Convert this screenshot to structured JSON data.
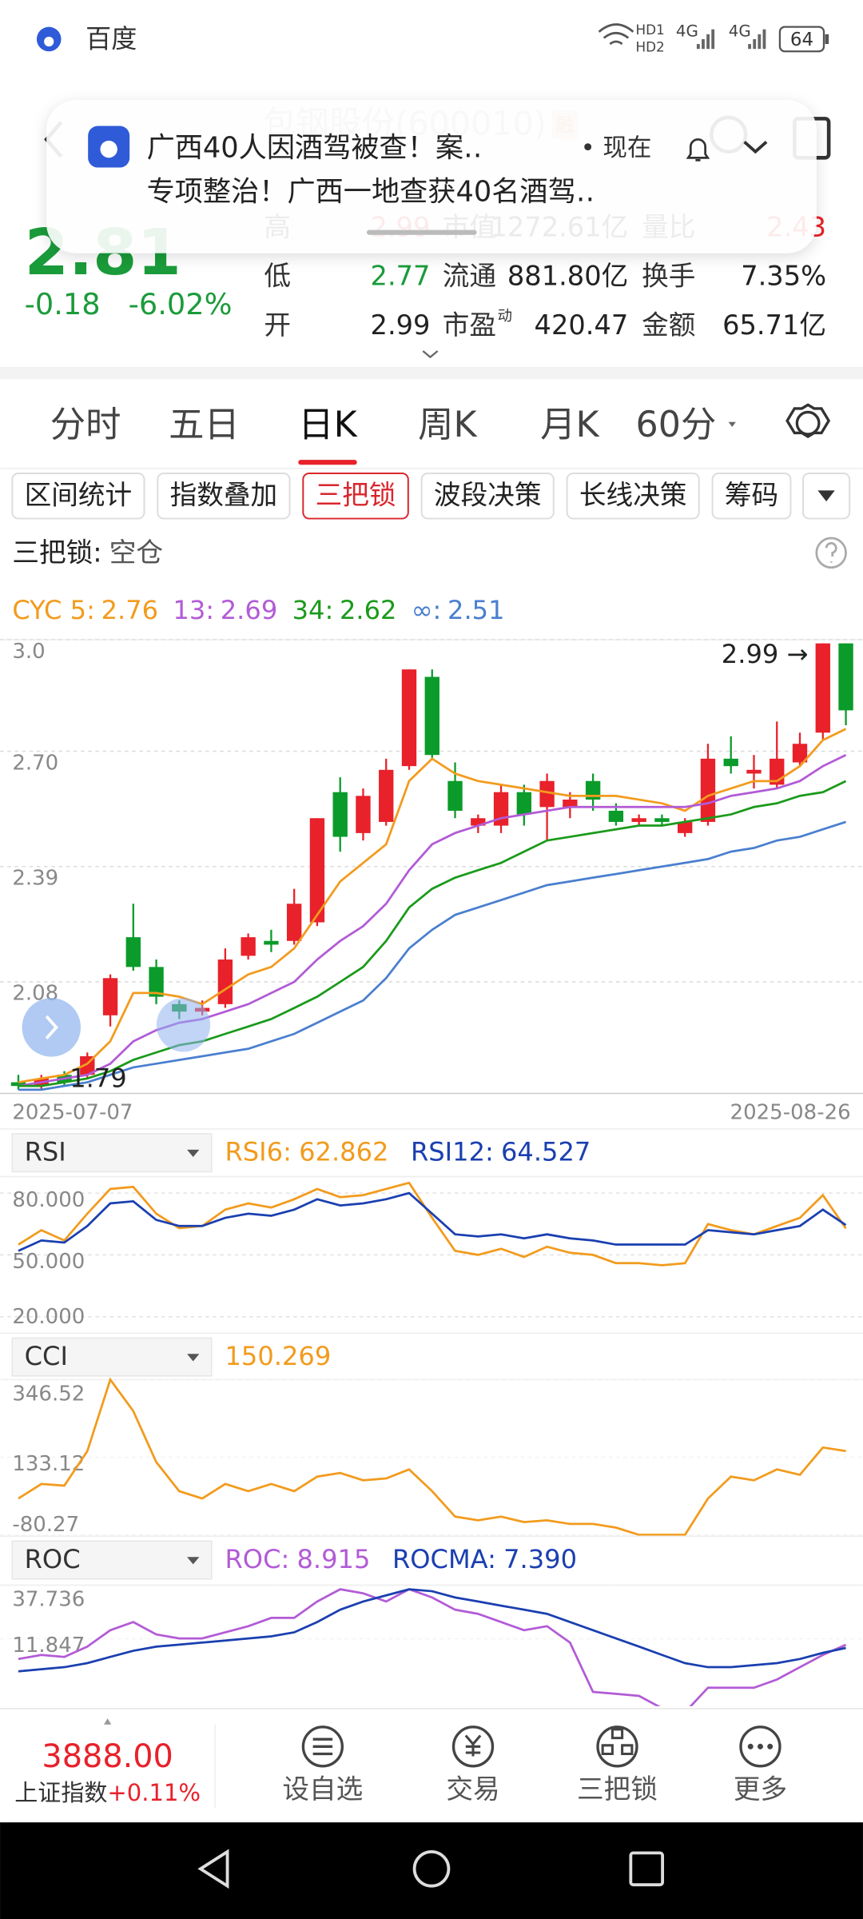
{
  "status_bar": {
    "app": "百度",
    "indicators": [
      "HD1",
      "HD2",
      "4G",
      "4G"
    ],
    "battery": "64"
  },
  "notification": {
    "line1": "广西40人因酒驾被查！案‥",
    "time": "• 现在",
    "line2": "专项整治！广西一地查获40名酒驾‥"
  },
  "stock": {
    "name": "包钢股份(600010)",
    "badge": "融",
    "price": "2.81",
    "change": "-0.18",
    "change_pct": "-6.02%",
    "stats": [
      [
        {
          "label": "高",
          "value": "2.99"
        },
        {
          "label": "市值",
          "value": "1272.61亿"
        },
        {
          "label": "量比",
          "value": "2.43"
        }
      ],
      [
        {
          "label": "低",
          "value": "2.77"
        },
        {
          "label": "流通",
          "value": "881.80亿"
        },
        {
          "label": "换手",
          "value": "7.35%"
        }
      ],
      [
        {
          "label": "开",
          "value": "2.99"
        },
        {
          "label": "市盈",
          "sup": "动",
          "value": "420.47"
        },
        {
          "label": "金额",
          "value": "65.71亿"
        }
      ]
    ]
  },
  "period_tabs": [
    "分时",
    "五日",
    "日K",
    "周K",
    "月K",
    "60分"
  ],
  "active_tab": 2,
  "indicator_chips": [
    "区间统计",
    "指数叠加",
    "三把锁",
    "波段决策",
    "长线决策",
    "筹码"
  ],
  "active_chip": 2,
  "signal": {
    "label": "三把锁:",
    "value": "空仓"
  },
  "chart_data": [
    {
      "type": "candlestick",
      "up_color": "#e8212a",
      "down_color": "#0a9b2a",
      "categories": [
        "2025-07-07",
        null,
        null,
        null,
        null,
        null,
        null,
        null,
        null,
        null,
        null,
        null,
        null,
        null,
        null,
        null,
        null,
        null,
        null,
        null,
        null,
        null,
        null,
        null,
        null,
        null,
        null,
        null,
        null,
        null,
        null,
        null,
        null,
        null,
        null,
        null,
        "2025-08-26"
      ],
      "open": [
        1.81,
        1.8,
        1.83,
        1.83,
        1.99,
        2.2,
        2.12,
        2.02,
        2.0,
        2.02,
        2.15,
        2.19,
        2.19,
        2.24,
        2.59,
        2.48,
        2.51,
        2.66,
        2.9,
        2.62,
        2.5,
        2.5,
        2.59,
        2.55,
        2.55,
        2.62,
        2.54,
        2.51,
        2.52,
        2.48,
        2.51,
        2.68,
        2.64,
        2.61,
        2.67,
        2.75,
        2.99
      ],
      "high": [
        1.83,
        1.83,
        1.84,
        1.89,
        2.1,
        2.29,
        2.14,
        2.03,
        2.03,
        2.17,
        2.21,
        2.22,
        2.33,
        2.52,
        2.63,
        2.6,
        2.68,
        2.92,
        2.92,
        2.67,
        2.53,
        2.61,
        2.61,
        2.64,
        2.59,
        2.64,
        2.56,
        2.53,
        2.53,
        2.52,
        2.72,
        2.74,
        2.69,
        2.78,
        2.75,
        2.99,
        2.99
      ],
      "low": [
        1.79,
        1.79,
        1.8,
        1.82,
        1.96,
        2.11,
        2.02,
        1.98,
        1.99,
        2.01,
        2.14,
        2.16,
        2.18,
        2.23,
        2.43,
        2.46,
        2.5,
        2.65,
        2.68,
        2.52,
        2.48,
        2.48,
        2.5,
        2.46,
        2.52,
        2.54,
        2.5,
        2.5,
        2.5,
        2.47,
        2.5,
        2.64,
        2.6,
        2.6,
        2.66,
        2.73,
        2.77
      ],
      "close": [
        1.8,
        1.82,
        1.81,
        1.88,
        2.09,
        2.12,
        2.04,
        2.0,
        2.01,
        2.14,
        2.2,
        2.18,
        2.29,
        2.52,
        2.47,
        2.58,
        2.65,
        2.92,
        2.69,
        2.54,
        2.52,
        2.59,
        2.53,
        2.62,
        2.57,
        2.57,
        2.51,
        2.52,
        2.51,
        2.51,
        2.68,
        2.66,
        2.65,
        2.68,
        2.72,
        2.99,
        2.81
      ],
      "series": [
        {
          "name": "CYC 5:",
          "value_label": "2.76",
          "color": "#f29b1d",
          "values": [
            1.81,
            1.82,
            1.83,
            1.86,
            1.92,
            2.05,
            2.05,
            2.04,
            2.02,
            2.06,
            2.1,
            2.12,
            2.17,
            2.26,
            2.35,
            2.4,
            2.45,
            2.62,
            2.68,
            2.64,
            2.62,
            2.61,
            2.6,
            2.59,
            2.58,
            2.58,
            2.58,
            2.57,
            2.56,
            2.54,
            2.58,
            2.6,
            2.62,
            2.62,
            2.66,
            2.73,
            2.76
          ]
        },
        {
          "name": "13:",
          "value_label": "2.69",
          "color": "#b25bd6",
          "values": [
            1.8,
            1.81,
            1.82,
            1.83,
            1.86,
            1.92,
            1.95,
            1.97,
            1.98,
            2.0,
            2.02,
            2.05,
            2.08,
            2.14,
            2.19,
            2.23,
            2.29,
            2.38,
            2.45,
            2.48,
            2.5,
            2.52,
            2.53,
            2.54,
            2.55,
            2.55,
            2.55,
            2.55,
            2.55,
            2.55,
            2.56,
            2.58,
            2.59,
            2.6,
            2.62,
            2.66,
            2.69
          ]
        },
        {
          "name": "34:",
          "value_label": "2.62",
          "color": "#1b9a1b",
          "values": [
            1.8,
            1.8,
            1.81,
            1.82,
            1.84,
            1.87,
            1.89,
            1.91,
            1.92,
            1.94,
            1.96,
            1.98,
            2.01,
            2.04,
            2.08,
            2.12,
            2.19,
            2.28,
            2.33,
            2.36,
            2.38,
            2.4,
            2.43,
            2.46,
            2.47,
            2.48,
            2.49,
            2.5,
            2.5,
            2.51,
            2.52,
            2.53,
            2.55,
            2.56,
            2.58,
            2.59,
            2.62
          ]
        },
        {
          "name": "∞:",
          "value_label": "2.51",
          "color": "#4a7fcf",
          "values": [
            1.79,
            1.79,
            1.8,
            1.81,
            1.83,
            1.85,
            1.86,
            1.87,
            1.88,
            1.89,
            1.9,
            1.92,
            1.94,
            1.97,
            2.0,
            2.03,
            2.09,
            2.17,
            2.22,
            2.26,
            2.28,
            2.3,
            2.32,
            2.34,
            2.35,
            2.36,
            2.37,
            2.38,
            2.39,
            2.4,
            2.41,
            2.43,
            2.44,
            2.46,
            2.47,
            2.49,
            2.51
          ]
        }
      ],
      "high_label": "2.99 →",
      "low_label": "1.79",
      "ylim": [
        1.78,
        3.0
      ],
      "yticks": [
        {
          "value": 3.0,
          "label": "3.0"
        },
        {
          "value": 2.7,
          "label": "2.70"
        },
        2.39,
        2.08
      ],
      "grid": true
    },
    {
      "type": "line",
      "selector": "RSI",
      "series": [
        {
          "name": "RSI6:",
          "value_label": "62.862",
          "color": "#f29b1d",
          "values": [
            55,
            62,
            57,
            70,
            82,
            83,
            70,
            63,
            64,
            72,
            75,
            73,
            77,
            82,
            78,
            79,
            82,
            85,
            68,
            52,
            50,
            53,
            49,
            54,
            51,
            50,
            46,
            46,
            45,
            46,
            65,
            62,
            60,
            64,
            68,
            79,
            62.862
          ]
        },
        {
          "name": "RSI12:",
          "value_label": "64.527",
          "color": "#1a3fb0",
          "values": [
            52,
            57,
            56,
            64,
            75,
            76,
            67,
            64,
            64,
            68,
            70,
            69,
            72,
            77,
            74,
            75,
            77,
            80,
            70,
            60,
            59,
            60,
            58,
            60,
            58,
            57,
            55,
            55,
            55,
            55,
            62,
            61,
            60,
            62,
            64,
            72,
            64.527
          ]
        }
      ],
      "ylim": [
        15,
        88
      ],
      "yticks": [
        {
          "value": 80,
          "label": "80.000"
        },
        {
          "value": 50,
          "label": "50.000"
        },
        {
          "value": 20,
          "label": "20.000"
        }
      ],
      "grid": true
    },
    {
      "type": "line",
      "selector": "CCI",
      "series": [
        {
          "value_label": "150.269",
          "color": "#f29b1d",
          "values": [
            20,
            60,
            55,
            150,
            346.52,
            260,
            120,
            40,
            20,
            60,
            40,
            60,
            40,
            80,
            90,
            70,
            75,
            100,
            40,
            -30,
            -40,
            -30,
            -45,
            -40,
            -50,
            -50,
            -60,
            -80,
            -80,
            -80,
            20,
            80,
            70,
            100,
            85,
            160,
            150.269
          ]
        }
      ],
      "ylim": [
        -80.27,
        346.52
      ],
      "yticks": [
        346.52,
        133.12,
        -80.27
      ],
      "grid": false
    },
    {
      "type": "line",
      "selector": "ROC",
      "series": [
        {
          "name": "ROC:",
          "value_label": "8.915",
          "color": "#b25bd6",
          "values": [
            2,
            4,
            3,
            8,
            16,
            20,
            14,
            12,
            12,
            15,
            18,
            22,
            22,
            30,
            36,
            34,
            30,
            36,
            32,
            26,
            24,
            20,
            16,
            18,
            10,
            -14,
            -15,
            -16,
            -22,
            -24,
            -12,
            -12,
            -12,
            -8,
            -2,
            4,
            8.915
          ]
        },
        {
          "name": "ROCMA:",
          "value_label": "7.390",
          "color": "#1a3fb0",
          "values": [
            -4,
            -3,
            -2,
            0,
            3,
            6,
            8,
            9,
            10,
            11,
            12,
            13,
            15,
            20,
            26,
            30,
            33,
            36,
            35,
            32,
            30,
            28,
            26,
            24,
            20,
            16,
            12,
            8,
            4,
            0,
            -2,
            -2,
            -1,
            0,
            2,
            5,
            7.39
          ]
        }
      ],
      "ylim": [
        -21,
        38
      ],
      "yticks": [
        37.736,
        11.847
      ],
      "grid": false
    }
  ],
  "bottom_bar": {
    "index_value": "3888.00",
    "index_name": "上证指数",
    "index_change": "+0.11%",
    "nav": [
      "设自选",
      "交易",
      "三把锁",
      "更多"
    ]
  }
}
